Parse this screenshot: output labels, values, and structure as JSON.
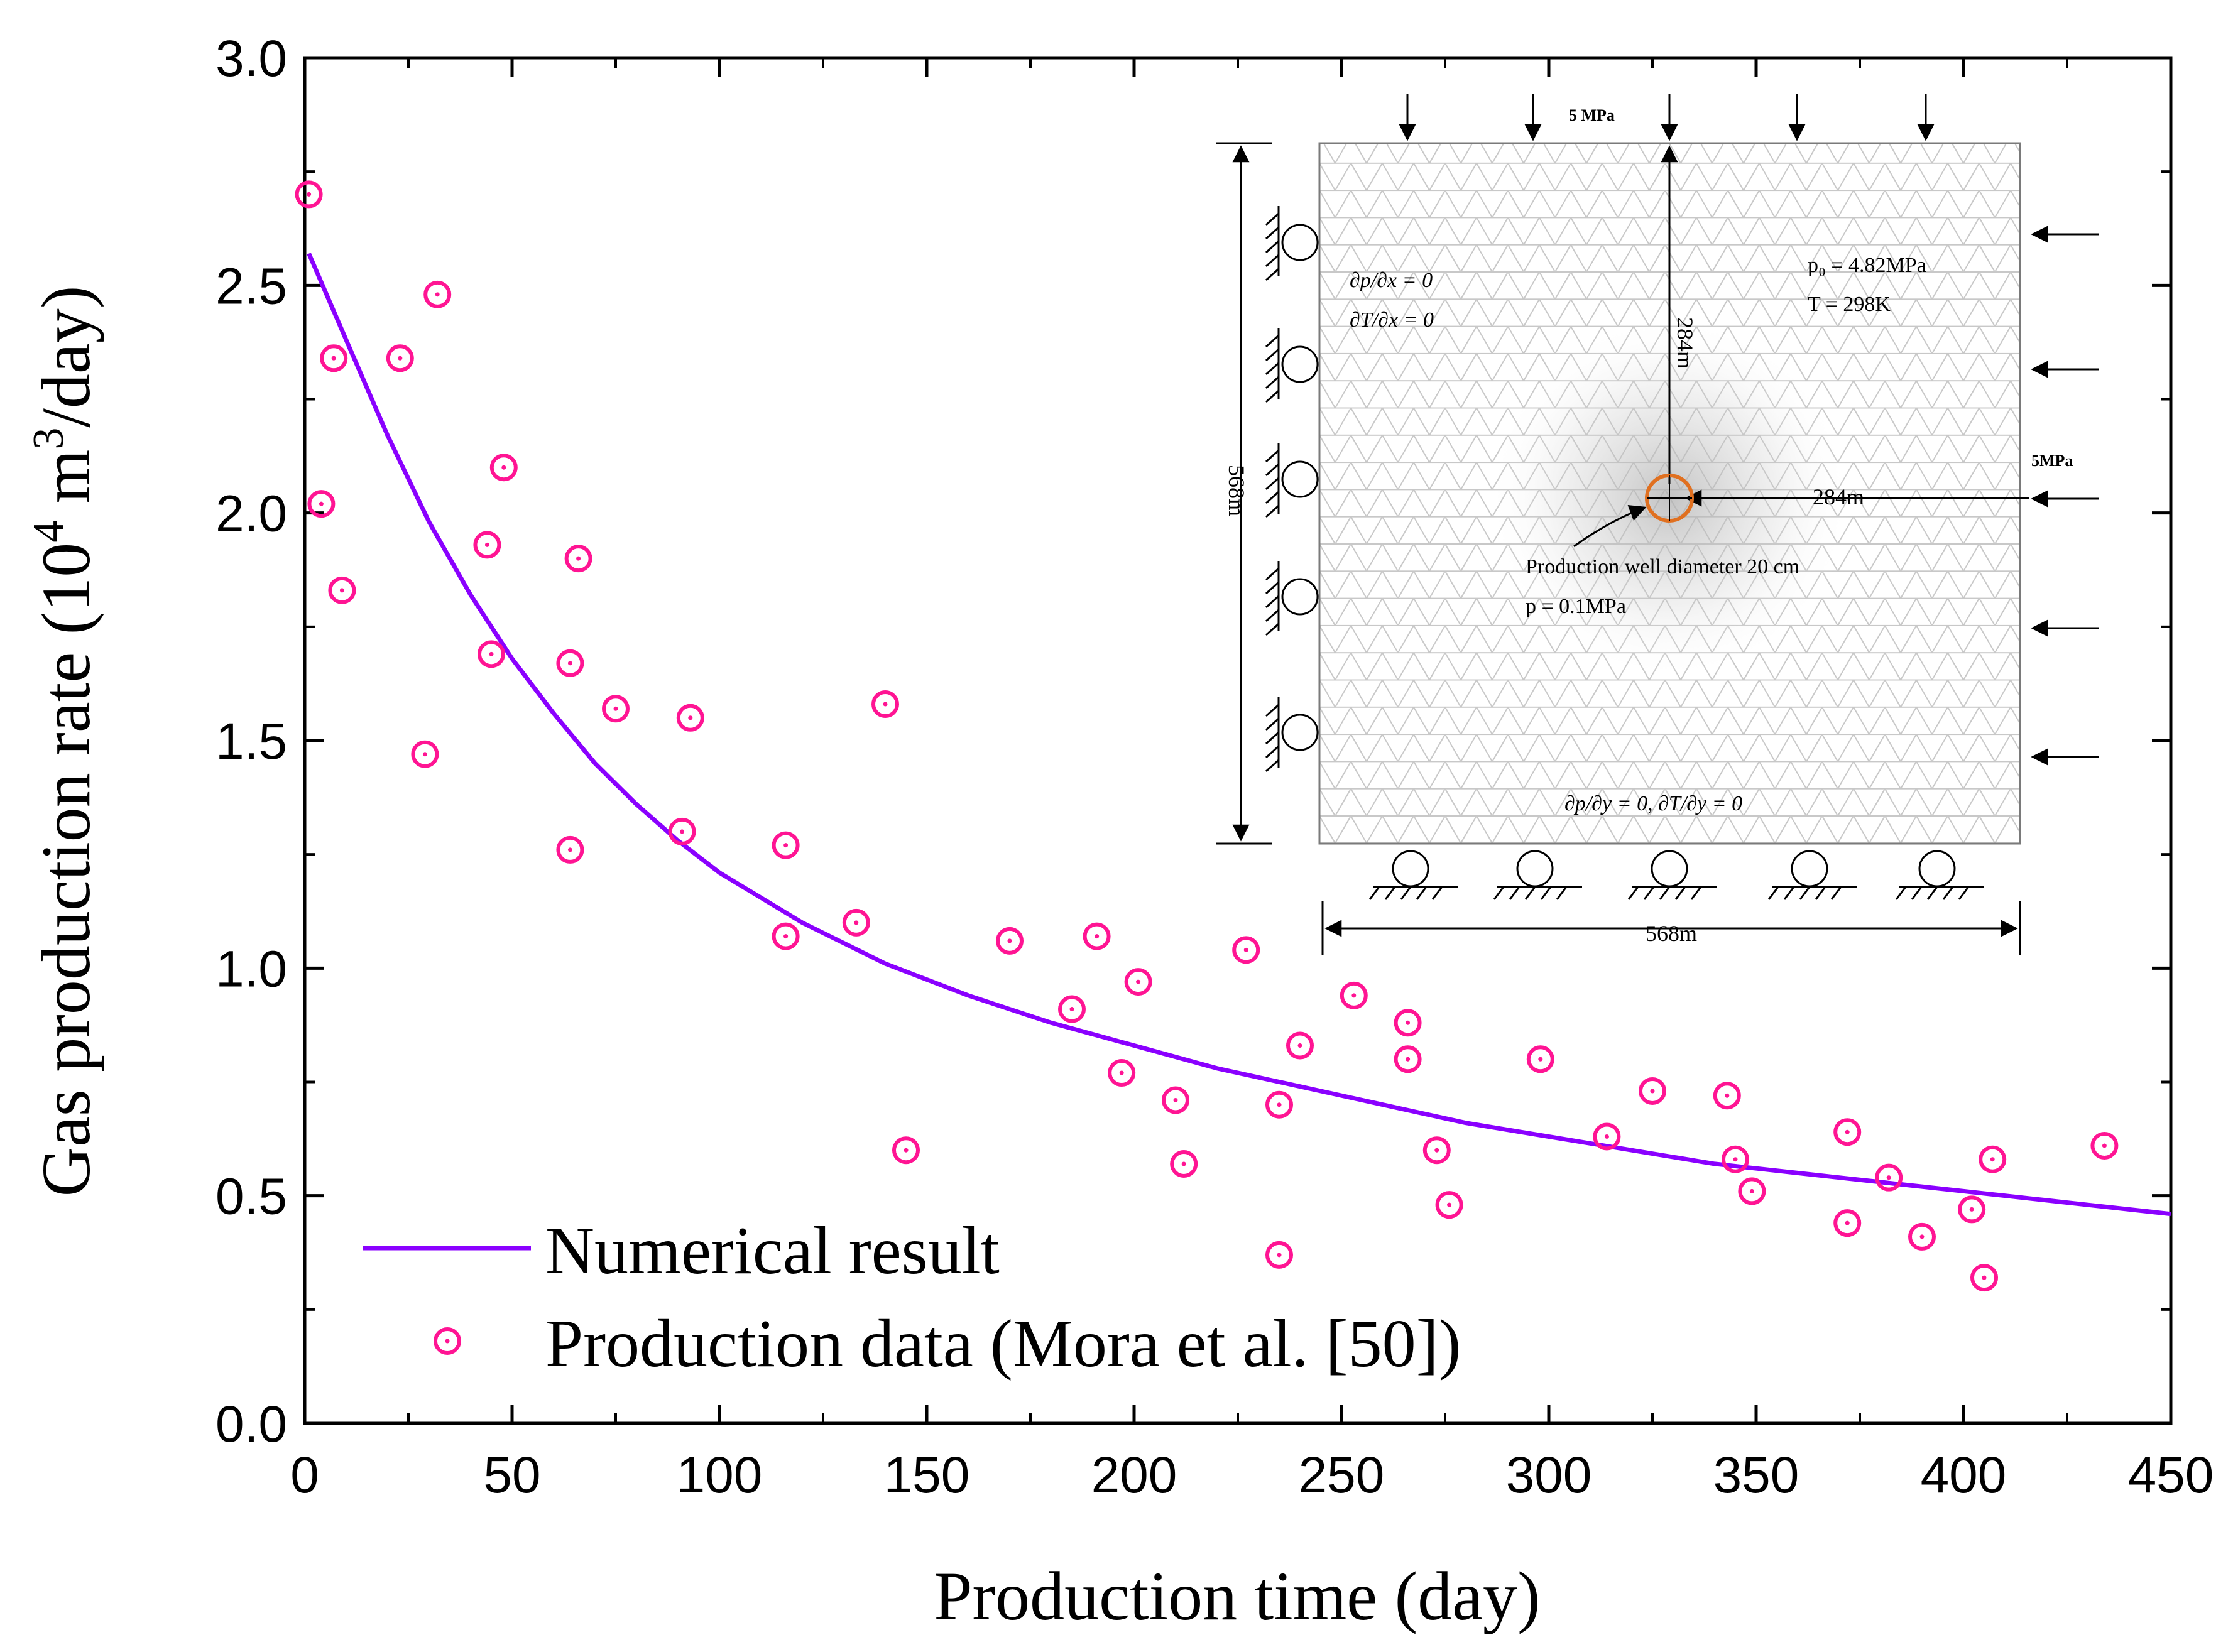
{
  "chart_data": {
    "type": "scatter",
    "xlabel": "Production time (day)",
    "ylabel": {
      "prefix": "Gas production rate (10",
      "exp1": "4",
      "mid": " m",
      "exp2": "3",
      "suffix": "/day)"
    },
    "xlim": [
      0,
      450
    ],
    "ylim": [
      0,
      3.0
    ],
    "xticks": [
      "0",
      "50",
      "100",
      "150",
      "200",
      "250",
      "300",
      "350",
      "400",
      "450"
    ],
    "yticks": [
      "0.0",
      "0.5",
      "1.0",
      "1.5",
      "2.0",
      "2.5",
      "3.0"
    ],
    "grid": false,
    "legend_position": "bottom-left",
    "colors": {
      "line": "#8a00ff",
      "markers": "#ff1493"
    },
    "series": [
      {
        "name": "Numerical result",
        "kind": "line",
        "x": [
          1,
          10,
          20,
          30,
          40,
          50,
          60,
          70,
          80,
          90,
          100,
          120,
          140,
          160,
          180,
          200,
          220,
          240,
          260,
          280,
          300,
          320,
          340,
          360,
          380,
          400,
          420,
          450
        ],
        "y": [
          2.57,
          2.38,
          2.17,
          1.98,
          1.82,
          1.68,
          1.56,
          1.45,
          1.36,
          1.28,
          1.21,
          1.1,
          1.01,
          0.94,
          0.88,
          0.83,
          0.78,
          0.74,
          0.7,
          0.66,
          0.63,
          0.6,
          0.57,
          0.55,
          0.53,
          0.51,
          0.49,
          0.46
        ]
      },
      {
        "name": "Production data (Mora et al. [50])",
        "kind": "scatter",
        "x": [
          1,
          4,
          7,
          9,
          23,
          29,
          32,
          44,
          45,
          48,
          64,
          64,
          66,
          75,
          91,
          93,
          116,
          116,
          133,
          140,
          145,
          170,
          185,
          191,
          197,
          201,
          210,
          212,
          227,
          235,
          235,
          240,
          253,
          266,
          266,
          273,
          276,
          298,
          314,
          325,
          343,
          345,
          349,
          372,
          372,
          382,
          390,
          402,
          405,
          407,
          434
        ],
        "y": [
          2.7,
          2.02,
          2.34,
          1.83,
          2.34,
          1.47,
          2.48,
          1.93,
          1.69,
          2.1,
          1.26,
          1.67,
          1.9,
          1.57,
          1.3,
          1.55,
          1.07,
          1.27,
          1.1,
          1.58,
          0.6,
          1.06,
          0.91,
          1.07,
          0.77,
          0.97,
          0.71,
          0.57,
          1.04,
          0.7,
          0.37,
          0.83,
          0.94,
          0.8,
          0.88,
          0.6,
          0.48,
          0.8,
          0.63,
          0.73,
          0.72,
          0.58,
          0.51,
          0.44,
          0.64,
          0.54,
          0.41,
          0.47,
          0.32,
          0.58,
          0.61
        ]
      }
    ]
  },
  "inset": {
    "top_load": "5 MPa",
    "right_load": "5MPa",
    "half_height": "284m",
    "half_width": "284m",
    "full_height": "568m",
    "full_width": "568m",
    "bc_left_1": "∂p/∂x = 0",
    "bc_left_2": "∂T/∂x = 0",
    "init_p": "p₀ = 4.82MPa",
    "init_T": "T = 298K",
    "well_label": "Production  well diameter 20 cm",
    "well_pressure": "p = 0.1MPa",
    "bc_bottom": "∂p/∂y = 0,   ∂T/∂y = 0"
  }
}
